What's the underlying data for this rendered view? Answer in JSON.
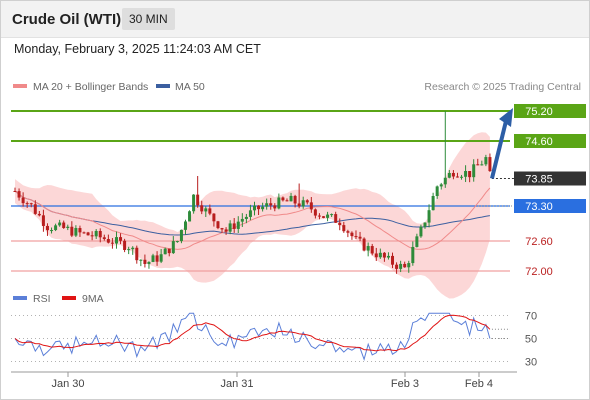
{
  "header": {
    "title": "Crude Oil (WTI)",
    "timeframe": "30 MIN"
  },
  "datetime": "Monday, February 3, 2025 11:24:03 AM CET",
  "colors": {
    "up": "#2e8b3a",
    "down": "#b81e1e",
    "ma20": "#f08a8a",
    "ma50": "#3b5fa0",
    "band": "#fbd0d0",
    "green_level": "#5aa516",
    "blue_level": "#2a6fe0",
    "red_level": "#f0a0a0",
    "arrow": "#2d5ea6",
    "rsi": "#5b7fd8",
    "rsi_ma": "#e01414",
    "price_dark": "#333333"
  },
  "chart_data": [
    {
      "type": "candlestick",
      "legend": [
        {
          "label": "MA 20 + Bollinger Bands",
          "color": "#f08a8a"
        },
        {
          "label": "MA 50",
          "color": "#3b5fa0"
        }
      ],
      "watermark": "Research © 2025 Trading Central",
      "ylim": [
        71.6,
        75.6
      ],
      "current_price": 73.85,
      "levels": [
        {
          "value": 75.2,
          "label": "75.20",
          "kind": "resistance"
        },
        {
          "value": 74.6,
          "label": "74.60",
          "kind": "resistance"
        },
        {
          "value": 73.3,
          "label": "73.30",
          "kind": "pivot"
        },
        {
          "value": 72.6,
          "label": "72.60",
          "kind": "support"
        },
        {
          "value": 72.0,
          "label": "72.00",
          "kind": "support"
        }
      ],
      "x_ticks": [
        "Jan 30",
        "Jan 31",
        "Feb 3",
        "Feb 4"
      ],
      "arrow": {
        "from": 73.85,
        "to": 75.2,
        "direction": "up"
      }
    },
    {
      "type": "line",
      "series": [
        {
          "name": "RSI",
          "color": "#5b7fd8"
        },
        {
          "name": "9MA",
          "color": "#e01414"
        }
      ],
      "ylim": [
        20,
        80
      ],
      "y_ticks": [
        70,
        50,
        30
      ],
      "rsi_last": 50,
      "rsi_ma_last": 58
    }
  ]
}
